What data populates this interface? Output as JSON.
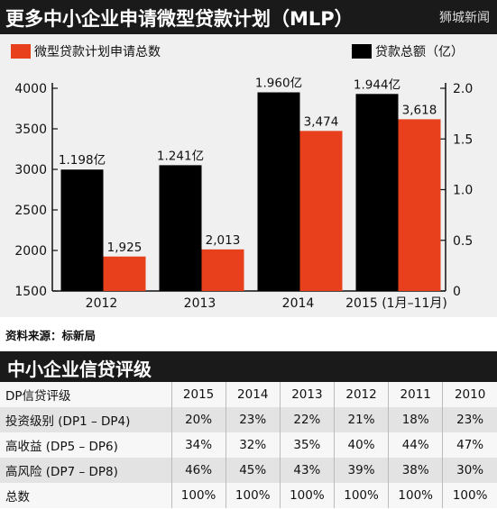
{
  "header": {
    "title": "更多中小企业申请微型贷款计划（MLP）",
    "source_logo": "狮城新闻"
  },
  "chart_data": {
    "type": "bar",
    "categories": [
      "2012",
      "2013",
      "2014",
      "2015 (1月–11月)"
    ],
    "series": [
      {
        "name": "贷款总额（亿）",
        "axis": "right",
        "values": [
          1.198,
          1.241,
          1.96,
          1.944
        ],
        "labels": [
          "1.198亿",
          "1.241亿",
          "1.960亿",
          "1.944亿"
        ],
        "color": "#000000"
      },
      {
        "name": "微型贷款计划申请总数",
        "axis": "left",
        "values": [
          1925,
          2013,
          3474,
          3618
        ],
        "labels": [
          "1,925",
          "2,013",
          "3,474",
          "3,618"
        ],
        "color": "#e8401c"
      }
    ],
    "y_left": {
      "min": 1500,
      "max": 4000,
      "ticks": [
        "1500",
        "2000",
        "2500",
        "3000",
        "3500",
        "4000"
      ]
    },
    "y_right": {
      "min": 0,
      "max": 2.0,
      "ticks": [
        "0",
        "0.5",
        "1.0",
        "1.5",
        "2.0"
      ]
    },
    "grid": false
  },
  "source_note": "资料来源：标新局",
  "rating_table": {
    "title": "中小企业信贷评级",
    "header": [
      "DP信贷评级",
      "2015",
      "2014",
      "2013",
      "2012",
      "2011",
      "2010"
    ],
    "rows": [
      [
        "投资级别 (DP1 – DP4)",
        "20%",
        "23%",
        "22%",
        "21%",
        "18%",
        "23%"
      ],
      [
        "高收益 (DP5 – DP6)",
        "34%",
        "32%",
        "35%",
        "40%",
        "44%",
        "47%"
      ],
      [
        "高风险 (DP7 – DP8)",
        "46%",
        "45%",
        "43%",
        "39%",
        "38%",
        "30%"
      ],
      [
        "总数",
        "100%",
        "100%",
        "100%",
        "100%",
        "100%",
        "100%"
      ]
    ]
  }
}
